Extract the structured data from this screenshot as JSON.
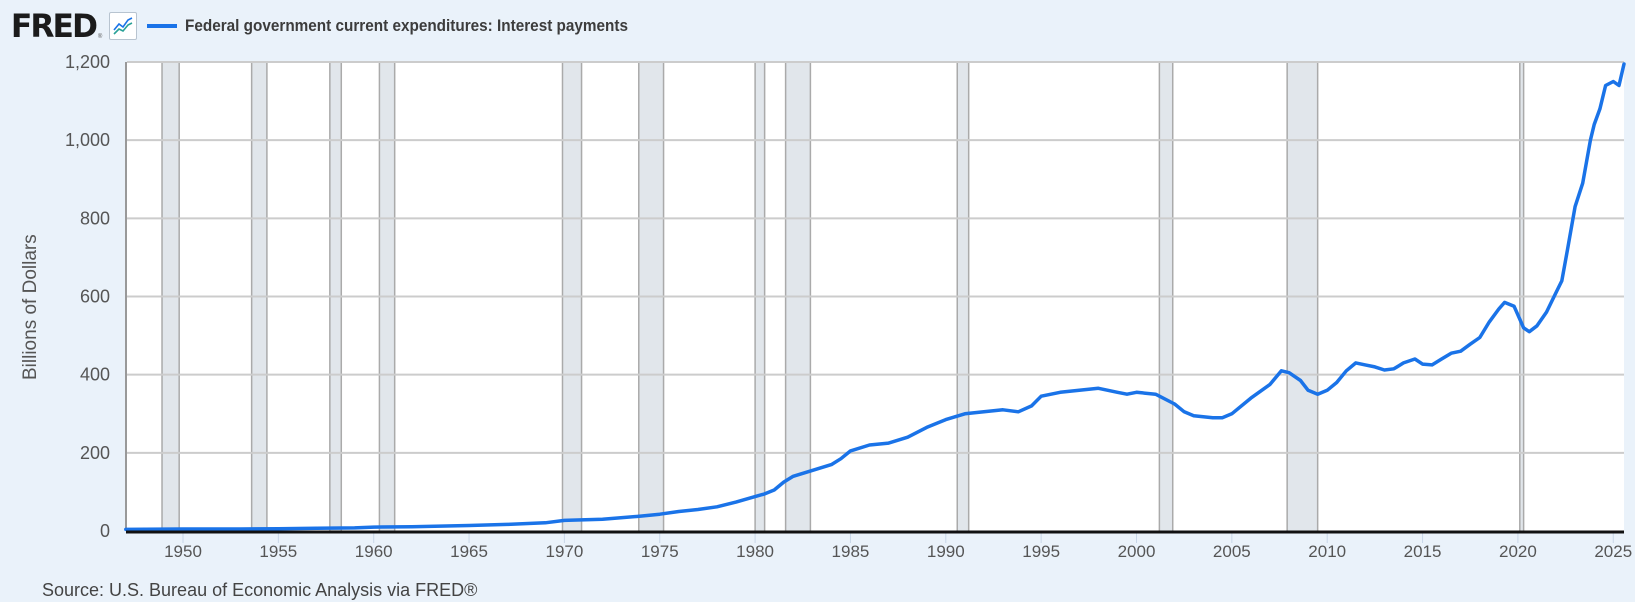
{
  "header": {
    "logo": "FRED",
    "logo_reg": "®",
    "chart_icon": "line-chart-icon",
    "series_label": "Federal government current expenditures: Interest payments",
    "series_color": "#1a73e8"
  },
  "axis": {
    "ylabel": "Billions of Dollars",
    "yticks": [
      "0",
      "200",
      "400",
      "600",
      "800",
      "1,000",
      "1,200"
    ],
    "xticks": [
      "1950",
      "1955",
      "1960",
      "1965",
      "1970",
      "1975",
      "1980",
      "1985",
      "1990",
      "1995",
      "2000",
      "2005",
      "2010",
      "2015",
      "2020",
      "2025"
    ]
  },
  "source": "Source: U.S. Bureau of Economic Analysis via FRED®",
  "colors": {
    "background": "#eaf2fa",
    "plot": "#ffffff",
    "grid": "#cccccc",
    "recession": "#e1e6eb",
    "line": "#1a73e8"
  },
  "chart_data": {
    "type": "line",
    "title": "Federal government current expenditures: Interest payments",
    "xlabel": "",
    "ylabel": "Billions of Dollars",
    "ylim": [
      0,
      1200
    ],
    "xlim": [
      1947,
      2025.6
    ],
    "grid": true,
    "legend_position": "top-left",
    "series": [
      {
        "name": "Federal government current expenditures: Interest payments",
        "x": [
          1947,
          1950,
          1953,
          1955,
          1957,
          1959,
          1960,
          1962,
          1965,
          1967,
          1969,
          1970,
          1972,
          1974,
          1975,
          1976,
          1977,
          1978,
          1979,
          1980,
          1980.5,
          1981,
          1981.5,
          1982,
          1983,
          1984,
          1984.5,
          1985,
          1986,
          1987,
          1988,
          1989,
          1990,
          1991,
          1992,
          1993,
          1993.8,
          1994.5,
          1995,
          1996,
          1997,
          1998,
          1999,
          1999.5,
          2000,
          2001,
          2002,
          2002.5,
          2003,
          2004,
          2004.5,
          2005,
          2006,
          2007,
          2007.6,
          2008,
          2008.6,
          2009,
          2009.5,
          2010,
          2010.5,
          2011,
          2011.5,
          2012,
          2012.5,
          2013,
          2013.5,
          2014,
          2014.6,
          2015,
          2015.5,
          2016,
          2016.5,
          2017,
          2017.5,
          2018,
          2018.5,
          2019,
          2019.3,
          2019.8,
          2020.3,
          2020.6,
          2021,
          2021.5,
          2022,
          2022.3,
          2022.6,
          2023,
          2023.4,
          2023.8,
          2024,
          2024.3,
          2024.6,
          2025,
          2025.3,
          2025.6
        ],
        "values": [
          4,
          5,
          5,
          6,
          7,
          8,
          10,
          11,
          14,
          17,
          21,
          27,
          30,
          38,
          43,
          50,
          55,
          62,
          74,
          88,
          95,
          105,
          125,
          140,
          155,
          170,
          185,
          205,
          220,
          225,
          240,
          265,
          285,
          300,
          305,
          310,
          305,
          320,
          345,
          355,
          360,
          365,
          355,
          350,
          355,
          350,
          325,
          305,
          295,
          290,
          290,
          300,
          340,
          375,
          410,
          405,
          385,
          360,
          350,
          360,
          380,
          410,
          430,
          425,
          420,
          412,
          415,
          430,
          440,
          427,
          425,
          440,
          455,
          460,
          478,
          495,
          535,
          568,
          585,
          575,
          520,
          510,
          525,
          560,
          610,
          640,
          720,
          830,
          890,
          1000,
          1040,
          1080,
          1140,
          1150,
          1140,
          1195
        ]
      }
    ],
    "recessions": [
      [
        1948.9,
        1949.8
      ],
      [
        1953.6,
        1954.4
      ],
      [
        1957.7,
        1958.3
      ],
      [
        1960.3,
        1961.1
      ],
      [
        1969.9,
        1970.9
      ],
      [
        1973.9,
        1975.2
      ],
      [
        1980.0,
        1980.5
      ],
      [
        1981.6,
        1982.9
      ],
      [
        1990.6,
        1991.2
      ],
      [
        2001.2,
        2001.9
      ],
      [
        2007.9,
        2009.5
      ],
      [
        2020.1,
        2020.3
      ]
    ]
  }
}
